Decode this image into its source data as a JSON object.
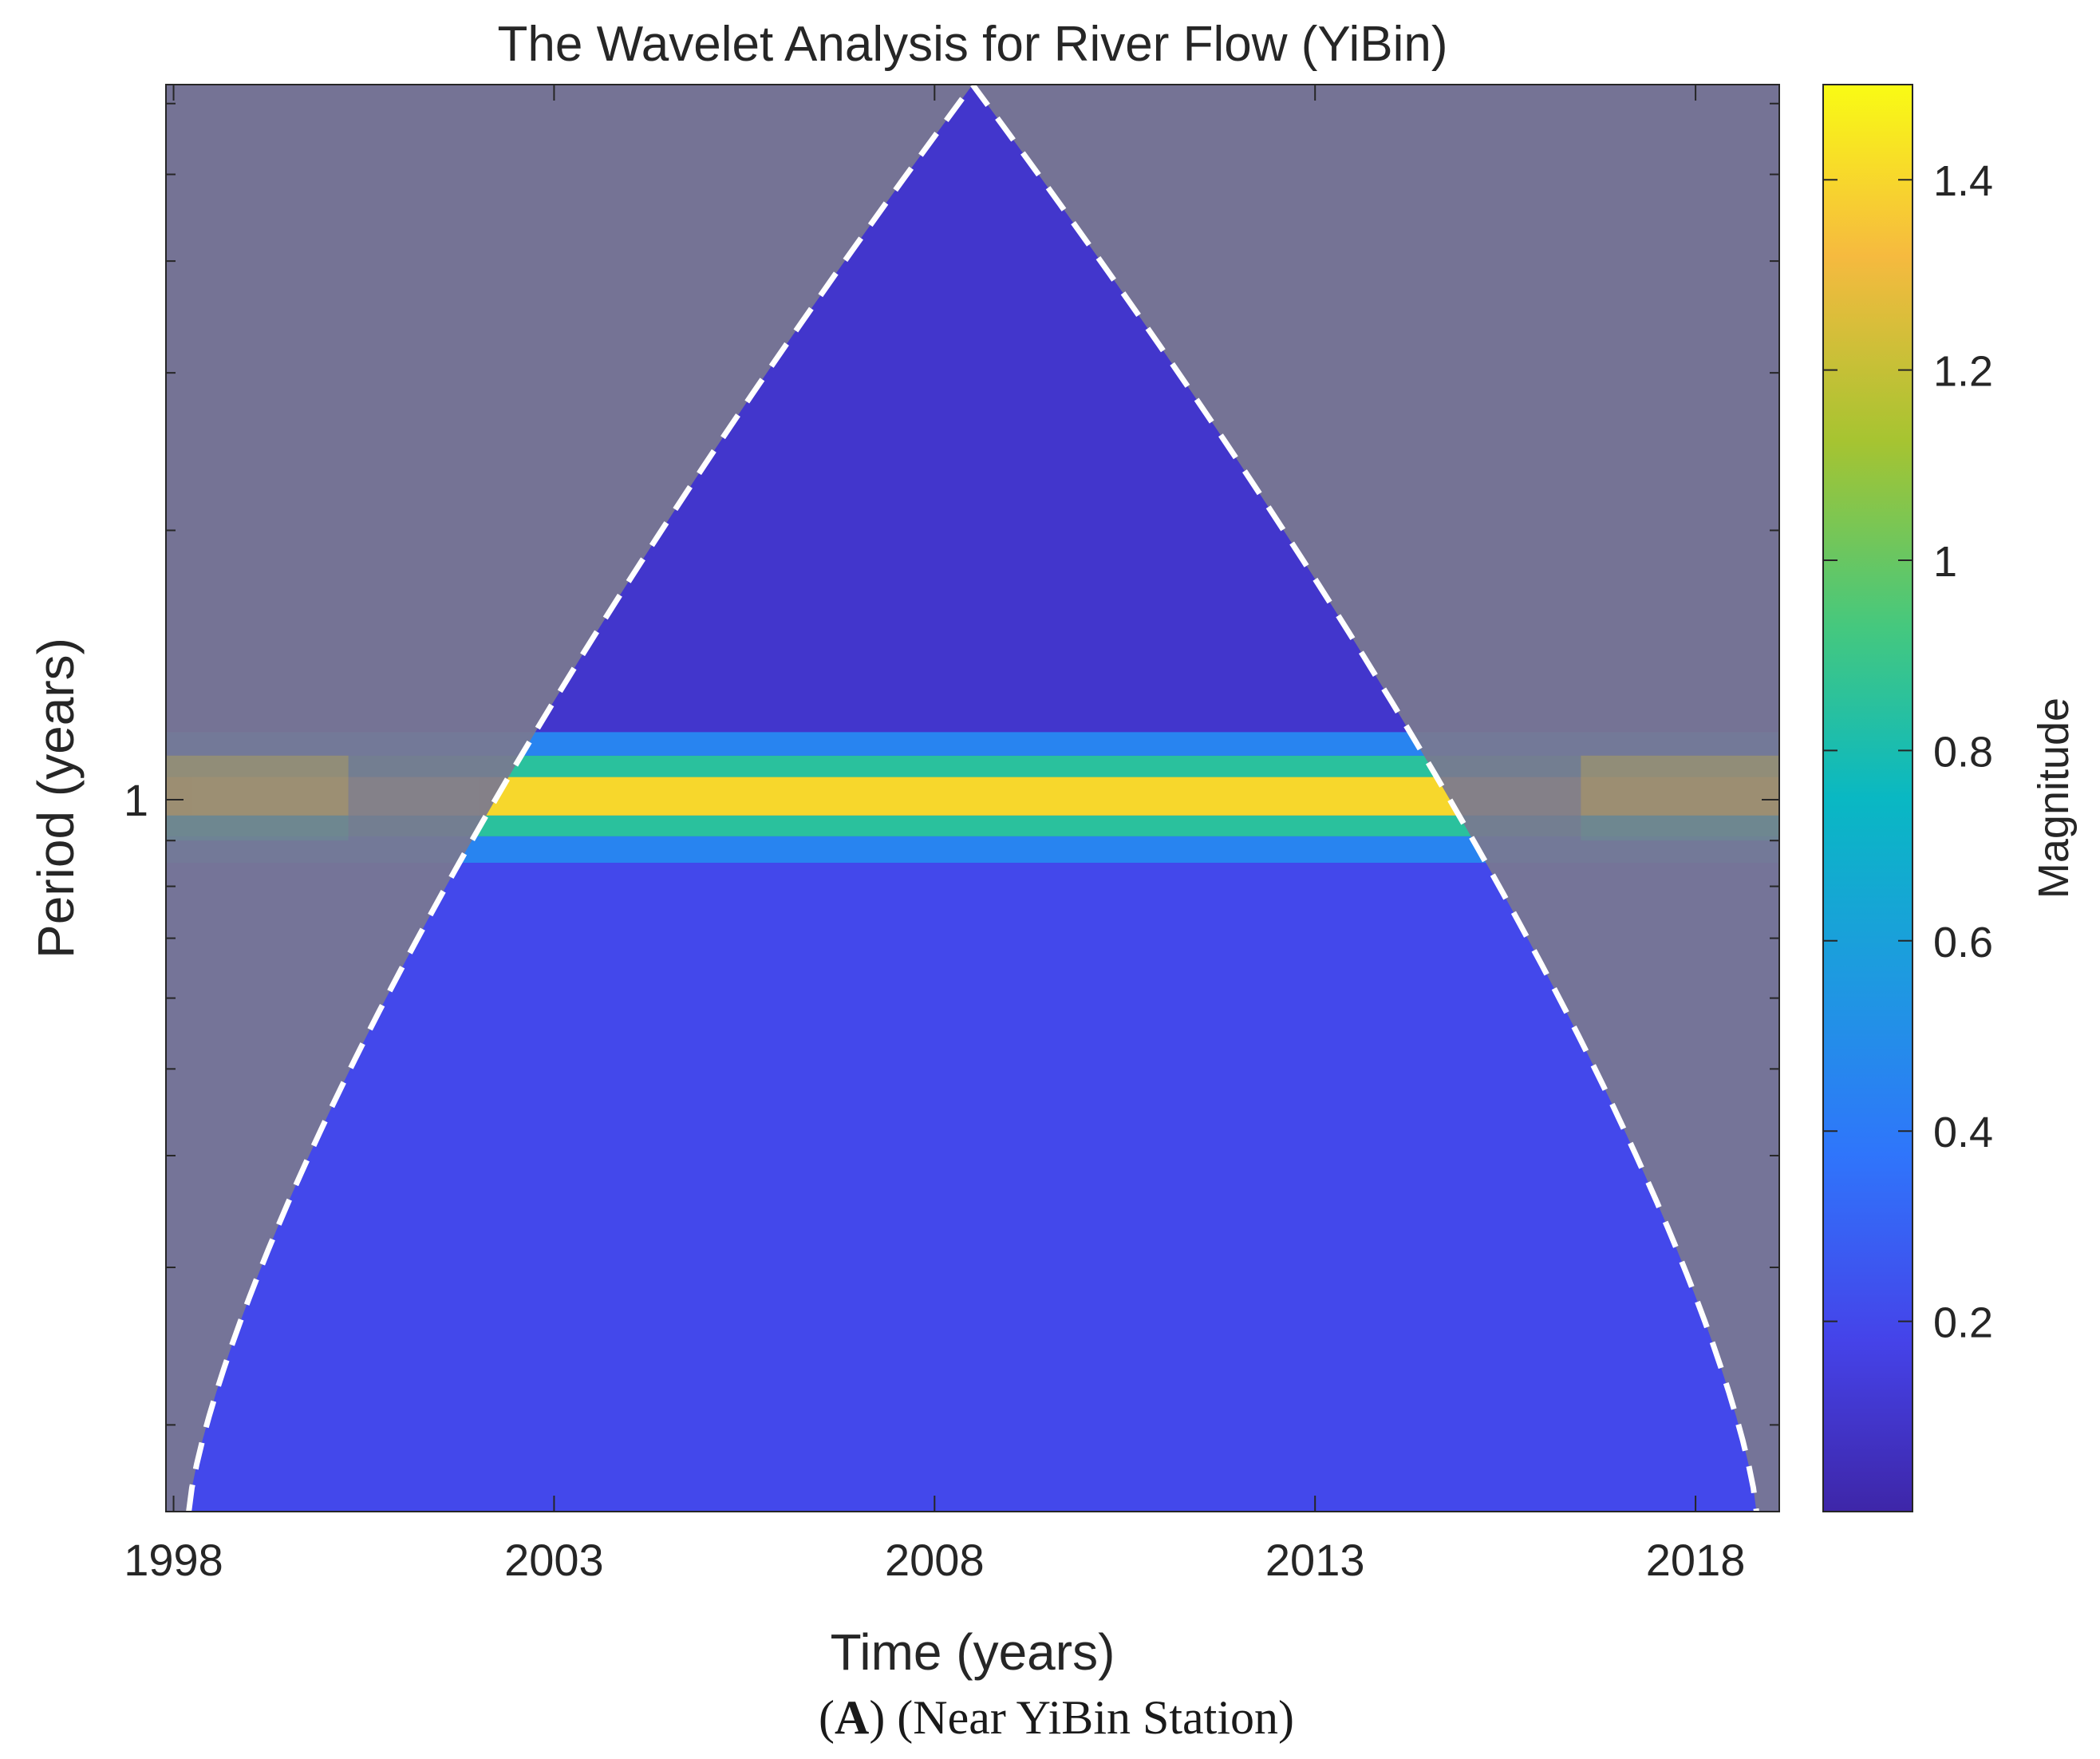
{
  "chart_data": {
    "type": "heatmap",
    "title": "The Wavelet Analysis for River Flow (YiBin)",
    "xlabel": "Time (years)",
    "ylabel": "Period (years)",
    "caption_letter": "A",
    "caption_rest": ") (Near YiBin Station)",
    "caption_open": "(",
    "xlim": [
      1997.9,
      2019.1
    ],
    "x_ticks": [
      1998,
      2003,
      2008,
      2013,
      2018
    ],
    "x_tick_labels": [
      "1998",
      "2003",
      "2008",
      "2013",
      "2018"
    ],
    "y_scale": "log",
    "ylim": [
      0.16,
      6.3
    ],
    "y_ticks": [
      1
    ],
    "y_tick_labels": [
      "1"
    ],
    "colorbar": {
      "label": "Magnitude",
      "range": [
        0.0,
        1.5
      ],
      "ticks": [
        0.2,
        0.4,
        0.6,
        0.8,
        1.0,
        1.2,
        1.4
      ],
      "tick_labels": [
        "0.2",
        "0.4",
        "0.6",
        "0.8",
        "1",
        "1.2",
        "1.4"
      ],
      "colormap": "parula"
    },
    "bands": [
      {
        "period_low": 0.16,
        "period_high": 0.85,
        "magnitude": 0.2
      },
      {
        "period_low": 0.85,
        "period_high": 0.91,
        "magnitude": 0.45
      },
      {
        "period_low": 0.91,
        "period_high": 0.96,
        "magnitude": 0.85
      },
      {
        "period_low": 0.96,
        "period_high": 1.06,
        "magnitude": 1.4
      },
      {
        "period_low": 1.06,
        "period_high": 1.12,
        "magnitude": 0.85
      },
      {
        "period_low": 1.12,
        "period_high": 1.19,
        "magnitude": 0.45
      },
      {
        "period_low": 1.19,
        "period_high": 6.3,
        "magnitude": 0.1
      }
    ],
    "peak": {
      "period": 1.0,
      "magnitude": 1.45,
      "time": 1999.5
    },
    "cone_of_influence": {
      "style": "white dashed line",
      "apex_time": 2008.5,
      "apex_period": 6.3,
      "left_base_time": 1998.2,
      "right_base_time": 2018.8
    },
    "colors": {
      "shade": "#7a7890",
      "line": "#ffffff",
      "axis": "#262626",
      "base": "#3b4fdc"
    }
  }
}
